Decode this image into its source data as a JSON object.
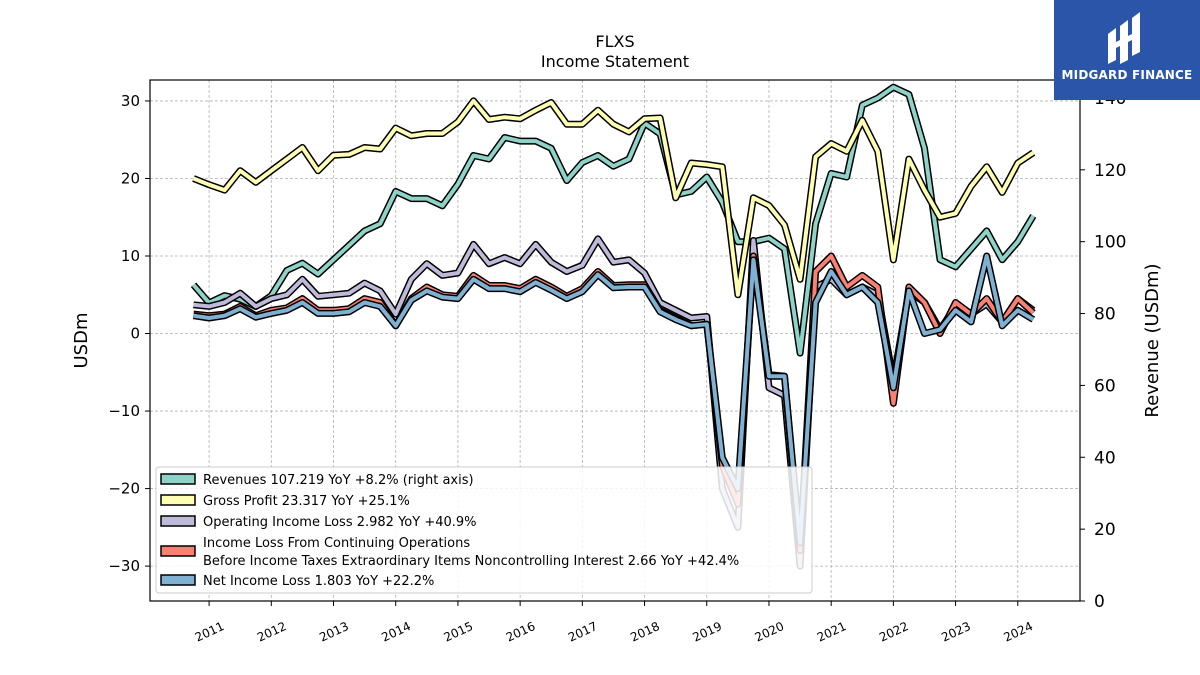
{
  "header": {
    "ticker": "FLXS",
    "subtitle": "Income Statement"
  },
  "brand": {
    "name": "MIDGARD FINANCE",
    "color": "#2a55a8"
  },
  "chart_data": {
    "type": "line",
    "title": "FLXS",
    "subtitle": "Income Statement",
    "ylabel": "USDm",
    "y2label": "Revenue (USDm)",
    "ylim": [
      -34.5,
      32.7
    ],
    "y2lim": [
      0,
      145
    ],
    "yticks": [
      -30,
      -20,
      -10,
      0,
      10,
      20,
      30
    ],
    "y2ticks": [
      0,
      20,
      40,
      60,
      80,
      100,
      120,
      140
    ],
    "xlim": [
      2010.05,
      2025.0
    ],
    "xticks": [
      2011,
      2012,
      2013,
      2014,
      2015,
      2016,
      2017,
      2018,
      2019,
      2020,
      2021,
      2022,
      2023,
      2024
    ],
    "grid": true,
    "legend_position": "lower-left",
    "series": [
      {
        "name": "Revenues",
        "legend": "Revenues  107.219 YoY +8.2% (right axis)",
        "axis": "right",
        "color": "#8dd3c7",
        "x": [
          2010.75,
          2011.0,
          2011.25,
          2011.5,
          2011.75,
          2012.0,
          2012.25,
          2012.5,
          2012.75,
          2013.0,
          2013.25,
          2013.5,
          2013.75,
          2014.0,
          2014.25,
          2014.5,
          2014.75,
          2015.0,
          2015.25,
          2015.5,
          2015.75,
          2016.0,
          2016.25,
          2016.5,
          2016.75,
          2017.0,
          2017.25,
          2017.5,
          2017.75,
          2018.0,
          2018.25,
          2018.5,
          2018.75,
          2019.0,
          2019.25,
          2019.5,
          2019.75,
          2020.0,
          2020.25,
          2020.5,
          2020.75,
          2021.0,
          2021.25,
          2021.5,
          2021.75,
          2022.0,
          2022.25,
          2022.5,
          2022.75,
          2023.0,
          2023.25,
          2023.5,
          2023.75,
          2024.0,
          2024.25
        ],
        "values": [
          88,
          83,
          85,
          84,
          82,
          85,
          92,
          94,
          91,
          95,
          99,
          103,
          105,
          114,
          112,
          112,
          110,
          116,
          124,
          123,
          129,
          128,
          128,
          126,
          117,
          122,
          124,
          121,
          123,
          133,
          130,
          113,
          114,
          118,
          111,
          100,
          100,
          101,
          98,
          69,
          105,
          119,
          118,
          138,
          140,
          143,
          141,
          126,
          95,
          93,
          98,
          103,
          95,
          100,
          107.219
        ]
      },
      {
        "name": "Gross Profit",
        "legend": "Gross Profit  23.317 YoY +25.1%",
        "axis": "left",
        "color": "#ffffb3",
        "x": [
          2010.75,
          2011.0,
          2011.25,
          2011.5,
          2011.75,
          2012.0,
          2012.25,
          2012.5,
          2012.75,
          2013.0,
          2013.25,
          2013.5,
          2013.75,
          2014.0,
          2014.25,
          2014.5,
          2014.75,
          2015.0,
          2015.25,
          2015.5,
          2015.75,
          2016.0,
          2016.25,
          2016.5,
          2016.75,
          2017.0,
          2017.25,
          2017.5,
          2017.75,
          2018.0,
          2018.25,
          2018.5,
          2018.75,
          2019.0,
          2019.25,
          2019.5,
          2019.75,
          2020.0,
          2020.25,
          2020.5,
          2020.75,
          2021.0,
          2021.25,
          2021.5,
          2021.75,
          2022.0,
          2022.25,
          2022.5,
          2022.75,
          2023.0,
          2023.25,
          2023.5,
          2023.75,
          2024.0,
          2024.25
        ],
        "values": [
          20,
          19.2,
          18.5,
          21,
          19.5,
          21,
          22.5,
          24,
          21,
          23,
          23.1,
          24,
          23.8,
          26.5,
          25.5,
          25.8,
          25.8,
          27.3,
          30,
          27.6,
          27.9,
          27.7,
          28.8,
          29.8,
          27,
          27,
          28.8,
          27,
          26,
          27.7,
          27.8,
          17.5,
          22,
          21.8,
          21.5,
          5,
          17.5,
          16.5,
          14,
          7,
          22.8,
          24.5,
          23.5,
          27.5,
          23.5,
          9.5,
          22.5,
          18.5,
          15,
          15.5,
          19,
          21.5,
          18.2,
          22,
          23.317
        ]
      },
      {
        "name": "Operating Income Loss",
        "legend": "Operating Income Loss  2.982 YoY +40.9%",
        "axis": "left",
        "color": "#bebada",
        "x": [
          2010.75,
          2011.0,
          2011.25,
          2011.5,
          2011.75,
          2012.0,
          2012.25,
          2012.5,
          2012.75,
          2013.0,
          2013.25,
          2013.5,
          2013.75,
          2014.0,
          2014.25,
          2014.5,
          2014.75,
          2015.0,
          2015.25,
          2015.5,
          2015.75,
          2016.0,
          2016.25,
          2016.5,
          2016.75,
          2017.0,
          2017.25,
          2017.5,
          2017.75,
          2018.0,
          2018.25,
          2018.5,
          2018.75,
          2019.0,
          2019.25,
          2019.5,
          2019.75,
          2020.0,
          2020.25,
          2020.5,
          2020.75,
          2021.0,
          2021.25,
          2021.5,
          2021.75,
          2022.0,
          2022.25,
          2022.5,
          2022.75,
          2023.0,
          2023.25,
          2023.5,
          2023.75,
          2024.0,
          2024.25
        ],
        "values": [
          3.7,
          3.5,
          4.0,
          5.2,
          3.5,
          4.5,
          5.0,
          7.0,
          4.8,
          5.0,
          5.2,
          6.5,
          5.5,
          2.5,
          7.0,
          9.0,
          7.5,
          7.8,
          11.5,
          9.0,
          9.8,
          9.0,
          11.5,
          9.2,
          8.0,
          8.8,
          12.2,
          9.2,
          9.5,
          7.8,
          4.0,
          3.0,
          2.0,
          2.2,
          -20,
          -25,
          12,
          -7,
          -8,
          -30,
          6,
          7,
          5,
          6,
          5,
          -6,
          5.5,
          4,
          0.5,
          3.5,
          2.5,
          3.8,
          1.5,
          4.5,
          2.982
        ]
      },
      {
        "name": "Income Loss From Continuing Operations Before Income Taxes Extraordinary Items Noncontrolling Interest",
        "legend_line1": "Income Loss From Continuing Operations",
        "legend_line2": "Before Income Taxes Extraordinary Items Noncontrolling Interest  2.66 YoY +42.4%",
        "axis": "left",
        "color": "#fb8072",
        "x": [
          2010.75,
          2011.0,
          2011.25,
          2011.5,
          2011.75,
          2012.0,
          2012.25,
          2012.5,
          2012.75,
          2013.0,
          2013.25,
          2013.5,
          2013.75,
          2014.0,
          2014.25,
          2014.5,
          2014.75,
          2015.0,
          2015.25,
          2015.5,
          2015.75,
          2016.0,
          2016.25,
          2016.5,
          2016.75,
          2017.0,
          2017.25,
          2017.5,
          2017.75,
          2018.0,
          2018.25,
          2018.5,
          2018.75,
          2019.0,
          2019.25,
          2019.5,
          2019.75,
          2020.0,
          2020.25,
          2020.5,
          2020.75,
          2021.0,
          2021.25,
          2021.5,
          2021.75,
          2022.0,
          2022.25,
          2022.5,
          2022.75,
          2023.0,
          2023.25,
          2023.5,
          2023.75,
          2024.0,
          2024.25
        ],
        "values": [
          2.5,
          2.3,
          2.5,
          3.5,
          2.3,
          3.0,
          3.3,
          4.5,
          3.0,
          3.0,
          3.2,
          4.5,
          4.0,
          1.0,
          4.5,
          6.0,
          5.0,
          4.8,
          7.5,
          6.2,
          6.2,
          5.8,
          7.0,
          6.0,
          4.8,
          5.8,
          8.0,
          6.2,
          6.3,
          6.3,
          3.0,
          2.0,
          1.0,
          1.2,
          -17,
          -22,
          10,
          -5.3,
          -5.5,
          -28,
          8,
          10,
          6,
          7.5,
          6,
          -9,
          6,
          4,
          0,
          4,
          2.5,
          4.5,
          1.5,
          4.5,
          2.66
        ]
      },
      {
        "name": "Net Income Loss",
        "legend": "Net Income Loss  1.803 YoY +22.2%",
        "axis": "left",
        "color": "#80b1d3",
        "x": [
          2010.75,
          2011.0,
          2011.25,
          2011.5,
          2011.75,
          2012.0,
          2012.25,
          2012.5,
          2012.75,
          2013.0,
          2013.25,
          2013.5,
          2013.75,
          2014.0,
          2014.25,
          2014.5,
          2014.75,
          2015.0,
          2015.25,
          2015.5,
          2015.75,
          2016.0,
          2016.25,
          2016.5,
          2016.75,
          2017.0,
          2017.25,
          2017.5,
          2017.75,
          2018.0,
          2018.25,
          2018.5,
          2018.75,
          2019.0,
          2019.25,
          2019.5,
          2019.75,
          2020.0,
          2020.25,
          2020.5,
          2020.75,
          2021.0,
          2021.25,
          2021.5,
          2021.75,
          2022.0,
          2022.25,
          2022.5,
          2022.75,
          2023.0,
          2023.25,
          2023.5,
          2023.75,
          2024.0,
          2024.25
        ],
        "values": [
          2.3,
          2.0,
          2.3,
          3.2,
          2.1,
          2.6,
          3.0,
          4.0,
          2.6,
          2.6,
          2.8,
          4.0,
          3.5,
          1.0,
          4.3,
          5.5,
          4.7,
          4.5,
          7.0,
          5.8,
          5.8,
          5.4,
          6.6,
          5.6,
          4.5,
          5.4,
          7.6,
          5.9,
          6.0,
          6.0,
          2.8,
          1.8,
          1.0,
          1.2,
          -16,
          -20,
          9.5,
          -5.5,
          -5.5,
          -27,
          4,
          8,
          5,
          6,
          4,
          -7,
          5.5,
          0,
          0.5,
          3.0,
          1.5,
          10,
          1,
          3,
          1.803
        ]
      }
    ]
  }
}
